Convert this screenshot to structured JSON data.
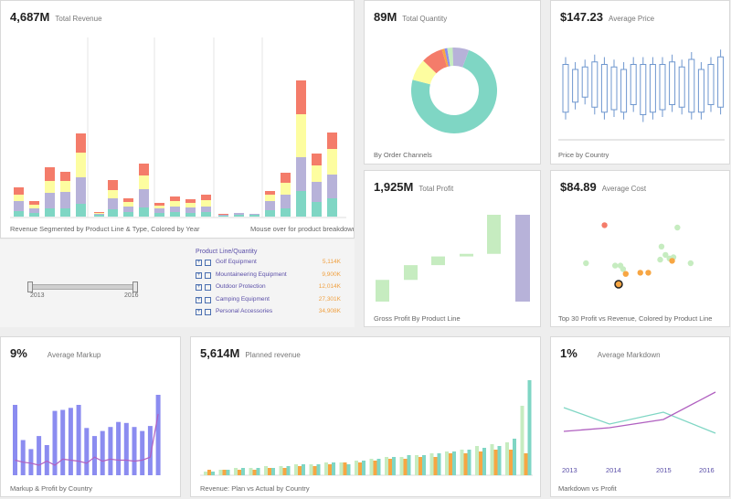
{
  "revenue": {
    "value": "4,687M",
    "label": "Total Revenue",
    "caption": "Revenue Segmented by Product Line & Type, Colored by Year",
    "hint": "Mouse over for product breakdown"
  },
  "slider": {
    "start": "2013",
    "end": "2016"
  },
  "legend": {
    "header": "Product Line/Quantity",
    "items": [
      {
        "name": "Golf Equipment",
        "value": "5,114K"
      },
      {
        "name": "Mountaineering Equipment",
        "value": "9,900K"
      },
      {
        "name": "Outdoor Protection",
        "value": "12,014K"
      },
      {
        "name": "Camping Equipment",
        "value": "27,301K"
      },
      {
        "name": "Personal Accessories",
        "value": "34,908K"
      }
    ]
  },
  "quantity": {
    "value": "89M",
    "label": "Total Quantity",
    "caption": "By Order Channels"
  },
  "price": {
    "value": "$147.23",
    "label": "Average Price",
    "caption": "Price by Country"
  },
  "profit": {
    "value": "1,925M",
    "label": "Total Profit",
    "caption": "Gross Profit By Product Line"
  },
  "cost": {
    "value": "$84.89",
    "label": "Average Cost",
    "caption": "Top 30 Profit vs Revenue, Colored by Product Line"
  },
  "markup": {
    "value": "9%",
    "label": "Average Markup",
    "caption": "Markup & Profit by Country"
  },
  "planned": {
    "value": "5,614M",
    "label": "Planned revenue",
    "caption": "Revenue: Plan vs Actual by Country"
  },
  "markdown": {
    "value": "1%",
    "label": "Average Markdown",
    "caption": "Markdown vs Profit",
    "years": [
      "2013",
      "2014",
      "2015",
      "2016"
    ]
  },
  "colors": {
    "teal": "#7fd6c4",
    "purple": "#b7b2d9",
    "yellow": "#fdfda0",
    "red": "#f47c6a",
    "orange": "#f7a643",
    "green": "#c6ecc0",
    "indigo": "#8b8cf0",
    "line_purple": "#b060c0"
  },
  "chart_data": [
    {
      "type": "bar",
      "id": "revenue_stacked",
      "series_labels": [
        "teal",
        "purple",
        "yellow",
        "red"
      ],
      "values": [
        [
          6,
          11,
          7,
          8
        ],
        [
          4,
          5,
          4,
          4
        ],
        [
          9,
          17,
          13,
          15
        ],
        [
          9,
          18,
          12,
          10
        ],
        [
          14,
          29,
          27,
          21
        ],
        [
          2,
          1,
          1,
          1
        ],
        [
          8,
          12,
          9,
          11
        ],
        [
          5,
          6,
          5,
          4
        ],
        [
          10,
          20,
          15,
          13
        ],
        [
          4,
          5,
          3,
          3
        ],
        [
          5,
          6,
          6,
          5
        ],
        [
          4,
          6,
          5,
          4
        ],
        [
          5,
          6,
          7,
          6
        ],
        [
          1,
          1,
          0,
          1
        ],
        [
          2,
          2,
          0,
          0
        ],
        [
          2,
          1,
          0,
          0
        ],
        [
          7,
          10,
          7,
          4
        ],
        [
          9,
          15,
          13,
          11
        ],
        [
          28,
          37,
          47,
          37
        ],
        [
          16,
          22,
          18,
          13
        ],
        [
          10,
          16,
          11,
          10
        ],
        [
          20,
          26,
          28,
          18
        ]
      ]
    },
    {
      "type": "pie",
      "id": "order_channels",
      "values": [
        72,
        8,
        8,
        1,
        1,
        2,
        6
      ],
      "colors": [
        "#7fd6c4",
        "#fdfda0",
        "#f47c6a",
        "#f7a643",
        "#8b8cf0",
        "#c6ecc0",
        "#b7b2d9"
      ]
    },
    {
      "type": "box",
      "id": "price_by_country",
      "boxes": [
        [
          55,
          150
        ],
        [
          75,
          140
        ],
        [
          85,
          145
        ],
        [
          65,
          155
        ],
        [
          55,
          150
        ],
        [
          60,
          145
        ],
        [
          55,
          140
        ],
        [
          70,
          150
        ],
        [
          50,
          150
        ],
        [
          55,
          150
        ],
        [
          60,
          150
        ],
        [
          70,
          155
        ],
        [
          65,
          145
        ],
        [
          55,
          160
        ],
        [
          55,
          140
        ],
        [
          70,
          150
        ],
        [
          65,
          165
        ]
      ]
    },
    {
      "type": "bar",
      "id": "gross_profit_waterfall",
      "bars": [
        [
          0,
          25,
          "#c6ecc0"
        ],
        [
          25,
          42,
          "#c6ecc0"
        ],
        [
          42,
          52,
          "#c6ecc0"
        ],
        [
          52,
          55,
          "#c6ecc0"
        ],
        [
          55,
          100,
          "#c6ecc0"
        ],
        [
          0,
          100,
          "#b7b2d9"
        ]
      ]
    },
    {
      "type": "scatter",
      "id": "top30",
      "points": [
        [
          28,
          62,
          "#f47c6a"
        ],
        [
          93,
          30,
          "#c6ecc0"
        ],
        [
          71,
          44,
          "#c6ecc0"
        ],
        [
          83,
          60,
          "#c6ecc0"
        ],
        [
          14,
          30,
          "#c6ecc0"
        ],
        [
          36,
          28,
          "#c6ecc0"
        ],
        [
          40,
          28,
          "#c6ecc0"
        ],
        [
          42,
          25,
          "#c6ecc0"
        ],
        [
          77,
          34,
          "#c6ecc0"
        ],
        [
          80,
          35,
          "#c6ecc0"
        ],
        [
          74,
          37,
          "#c6ecc0"
        ],
        [
          70,
          33,
          "#c6ecc0"
        ],
        [
          55,
          22,
          "#f7a643"
        ],
        [
          44,
          21,
          "#f7a643"
        ],
        [
          79,
          32,
          "#f7a643"
        ],
        [
          61,
          22,
          "#f7a643"
        ]
      ]
    },
    {
      "type": "bar",
      "id": "markup_profit",
      "values": [
        70,
        35,
        26,
        39,
        30,
        64,
        65,
        67,
        70,
        47,
        39,
        44,
        48,
        53,
        52,
        48,
        44,
        49,
        80
      ],
      "line": [
        15,
        13,
        12,
        10,
        14,
        10,
        16,
        15,
        14,
        12,
        18,
        14,
        16,
        15,
        15,
        14,
        15,
        18,
        61
      ]
    },
    {
      "type": "bar",
      "id": "plan_vs_actual",
      "groups": [
        [
          2,
          3,
          2
        ],
        [
          3,
          3,
          3
        ],
        [
          4,
          3,
          4
        ],
        [
          4,
          3,
          4
        ],
        [
          5,
          4,
          4
        ],
        [
          5,
          4,
          5
        ],
        [
          6,
          5,
          6
        ],
        [
          6,
          5,
          6
        ],
        [
          7,
          6,
          7
        ],
        [
          7,
          7,
          6
        ],
        [
          8,
          7,
          8
        ],
        [
          9,
          8,
          9
        ],
        [
          10,
          9,
          10
        ],
        [
          10,
          9,
          11
        ],
        [
          11,
          10,
          11
        ],
        [
          12,
          10,
          12
        ],
        [
          13,
          12,
          13
        ],
        [
          14,
          12,
          14
        ],
        [
          16,
          13,
          15
        ],
        [
          17,
          14,
          16
        ],
        [
          18,
          14,
          20
        ],
        [
          38,
          12,
          52
        ]
      ]
    },
    {
      "type": "line",
      "id": "markdown_vs_profit",
      "series": [
        {
          "values": [
            58,
            40,
            53,
            30
          ]
        },
        {
          "values": [
            32,
            36,
            45,
            75
          ]
        }
      ]
    }
  ]
}
